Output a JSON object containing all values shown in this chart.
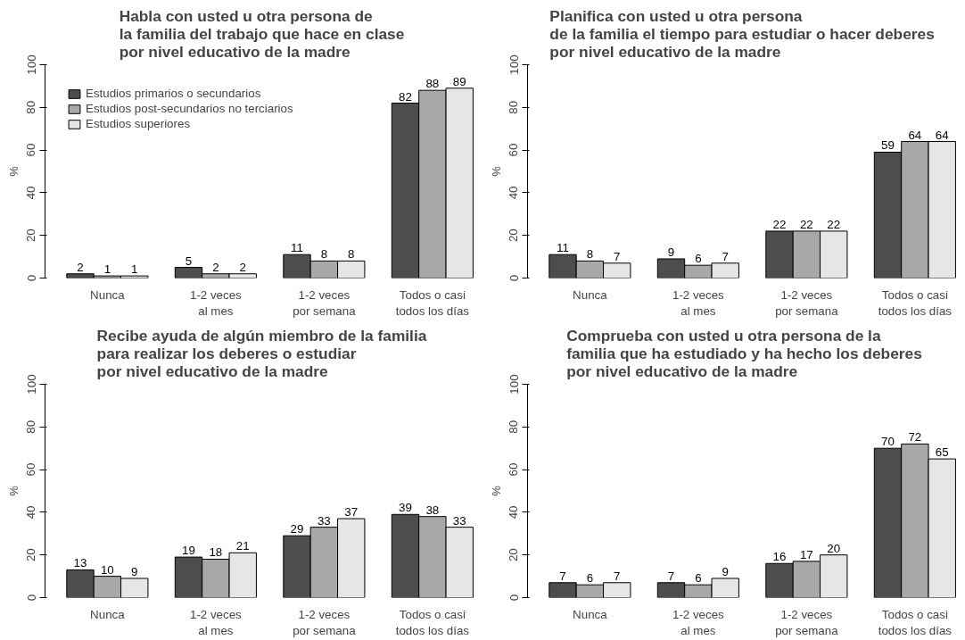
{
  "chart_data": [
    {
      "type": "bar",
      "title": "Habla con usted u otra persona de\nla familia del trabajo que hace en clase\npor nivel educativo de la madre",
      "ylabel": "%",
      "categories": [
        "Nunca",
        "1-2 veces\nal mes",
        "1-2 veces\npor semana",
        "Todos o casi\ntodos los días"
      ],
      "ylim": [
        0,
        100
      ],
      "yticks": [
        0,
        20,
        40,
        60,
        80,
        100
      ],
      "data_labels": true,
      "legend": "top left",
      "grid": false,
      "series": [
        {
          "name": "Estudios primarios o secundarios",
          "color": "#4d4d4d",
          "values": [
            2,
            5,
            11,
            82
          ]
        },
        {
          "name": "Estudios post-secundarios no terciarios",
          "color": "#a8a8a8",
          "values": [
            1,
            2,
            8,
            88
          ]
        },
        {
          "name": "Estudios superiores",
          "color": "#e6e6e6",
          "values": [
            1,
            2,
            8,
            89
          ]
        }
      ]
    },
    {
      "type": "bar",
      "title": "Planifica con usted u otra persona\nde la familia el tiempo para  estudiar o hacer deberes\npor nivel educativo de la madre",
      "ylabel": "%",
      "categories": [
        "Nunca",
        "1-2 veces\nal mes",
        "1-2 veces\npor semana",
        "Todos o casi\ntodos los días"
      ],
      "ylim": [
        0,
        100
      ],
      "yticks": [
        0,
        20,
        40,
        60,
        80,
        100
      ],
      "data_labels": true,
      "grid": false,
      "series": [
        {
          "color": "#4d4d4d",
          "values": [
            11,
            9,
            22,
            59
          ]
        },
        {
          "color": "#a8a8a8",
          "values": [
            8,
            6,
            22,
            64
          ]
        },
        {
          "color": "#e6e6e6",
          "values": [
            7,
            7,
            22,
            64
          ]
        }
      ]
    },
    {
      "type": "bar",
      "title": "Recibe ayuda de algún miembro de la familia\npara realizar los deberes o estudiar\npor nivel educativo de la madre",
      "ylabel": "%",
      "categories": [
        "Nunca",
        "1-2 veces\nal mes",
        "1-2 veces\npor semana",
        "Todos o casi\ntodos los días"
      ],
      "ylim": [
        0,
        100
      ],
      "yticks": [
        0,
        20,
        40,
        60,
        80,
        100
      ],
      "data_labels": true,
      "grid": false,
      "series": [
        {
          "color": "#4d4d4d",
          "values": [
            13,
            19,
            29,
            39
          ]
        },
        {
          "color": "#a8a8a8",
          "values": [
            10,
            18,
            33,
            38
          ]
        },
        {
          "color": "#e6e6e6",
          "values": [
            9,
            21,
            37,
            33
          ]
        }
      ]
    },
    {
      "type": "bar",
      "title": "Comprueba con usted u otra persona de la\nfamilia que ha estudiado y ha hecho los deberes\npor nivel educativo de la madre",
      "ylabel": "%",
      "categories": [
        "Nunca",
        "1-2 veces\nal mes",
        "1-2 veces\npor semana",
        "Todos o casi\ntodos los días"
      ],
      "ylim": [
        0,
        100
      ],
      "yticks": [
        0,
        20,
        40,
        60,
        80,
        100
      ],
      "data_labels": true,
      "grid": false,
      "series": [
        {
          "color": "#4d4d4d",
          "values": [
            7,
            7,
            16,
            70
          ]
        },
        {
          "color": "#a8a8a8",
          "values": [
            6,
            6,
            17,
            72
          ]
        },
        {
          "color": "#e6e6e6",
          "values": [
            7,
            9,
            20,
            65
          ]
        }
      ]
    }
  ]
}
